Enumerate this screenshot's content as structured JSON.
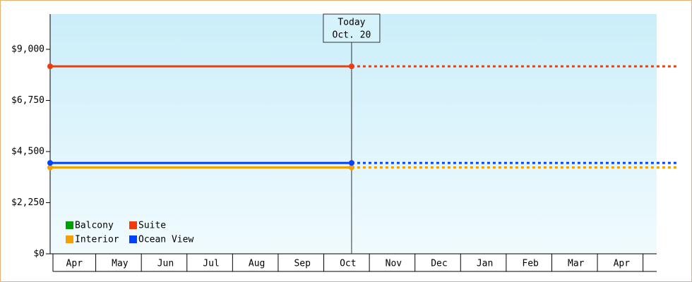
{
  "chart_data": {
    "type": "line",
    "categories": [
      "Apr",
      "May",
      "Jun",
      "Jul",
      "Aug",
      "Sep",
      "Oct",
      "Nov",
      "Dec",
      "Jan",
      "Feb",
      "Mar",
      "Apr"
    ],
    "x": [
      0,
      6.61
    ],
    "xlim": [
      0,
      13.3
    ],
    "ylim": [
      0,
      10550
    ],
    "yticks": [
      {
        "value": 0,
        "label": "$0"
      },
      {
        "value": 2250,
        "label": "$2,250"
      },
      {
        "value": 4500,
        "label": "$4,500"
      },
      {
        "value": 6750,
        "label": "$6,750"
      },
      {
        "value": 9000,
        "label": "$9,000"
      }
    ],
    "today": {
      "x": 6.61,
      "label": [
        "Today",
        "Oct. 20"
      ]
    },
    "projection": "dashed",
    "legend": "bottom-left",
    "series": [
      {
        "name": "Balcony",
        "color": "#00a000",
        "values": [
          null,
          null
        ]
      },
      {
        "name": "Suite",
        "color": "#f03c0a",
        "values": [
          8250,
          8250
        ]
      },
      {
        "name": "Interior",
        "color": "#f5a000",
        "values": [
          3800,
          3800
        ]
      },
      {
        "name": "Ocean View",
        "color": "#0040ff",
        "values": [
          4000,
          4000
        ]
      }
    ]
  }
}
